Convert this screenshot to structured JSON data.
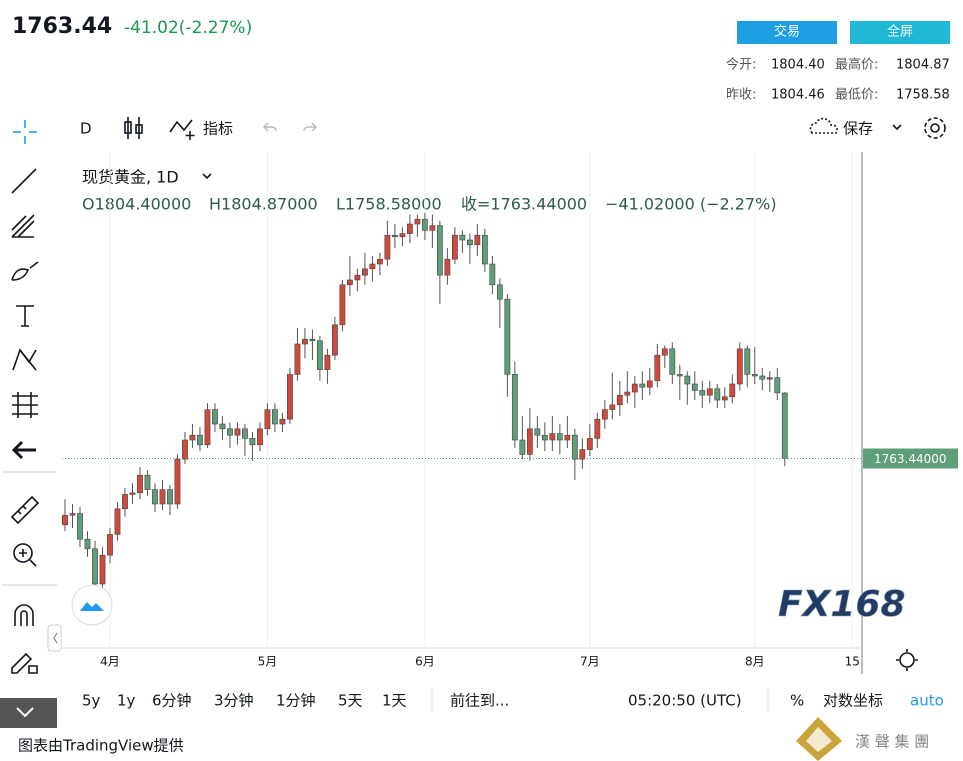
{
  "header": {
    "last": "1763.44",
    "change": "-41.02(-2.27%)",
    "buttons": [
      "交易",
      "全屏"
    ],
    "open_label": "今开:",
    "open": "1804.40",
    "high_label": "最高价:",
    "high": "1804.87",
    "prev_label": "昨收:",
    "prev": "1804.46",
    "low_label": "最低价:",
    "low": "1758.58"
  },
  "toolbar": {
    "interval": "D",
    "indicators": "指标",
    "save": "保存"
  },
  "chart_data": {
    "type": "candlestick",
    "symbol": "现货黄金, 1D",
    "legend": {
      "open": "O1804.40000",
      "high": "H1804.87000",
      "low": "L1758.58000",
      "close": "收=1763.44000",
      "change": "−41.02000 (−2.27%)"
    },
    "price_label": "1763.44000",
    "watermark": "FX168",
    "up_color": "#cf4a3c",
    "down_color": "#5e9e7a",
    "xlim": [
      -0.4,
      106.3
    ],
    "ylim": [
      1645,
      1955
    ],
    "xticks": [
      {
        "value": 6,
        "label": "4月"
      },
      {
        "value": 27,
        "label": "5月"
      },
      {
        "value": 48,
        "label": "6月"
      },
      {
        "value": 70,
        "label": "7月"
      },
      {
        "value": 92,
        "label": "8月"
      },
      {
        "value": 105,
        "label": "15"
      }
    ],
    "candles": [
      [
        1722,
        1738,
        1718,
        1728
      ],
      [
        1728,
        1735,
        1720,
        1729
      ],
      [
        1729,
        1733,
        1708,
        1713
      ],
      [
        1713,
        1718,
        1702,
        1707
      ],
      [
        1707,
        1712,
        1677,
        1685
      ],
      [
        1685,
        1708,
        1680,
        1703
      ],
      [
        1703,
        1720,
        1698,
        1716
      ],
      [
        1716,
        1736,
        1712,
        1732
      ],
      [
        1732,
        1745,
        1727,
        1741
      ],
      [
        1741,
        1748,
        1735,
        1742
      ],
      [
        1742,
        1758,
        1738,
        1753
      ],
      [
        1753,
        1756,
        1740,
        1744
      ],
      [
        1744,
        1748,
        1730,
        1735
      ],
      [
        1735,
        1750,
        1731,
        1744
      ],
      [
        1744,
        1747,
        1728,
        1735
      ],
      [
        1735,
        1766,
        1732,
        1763
      ],
      [
        1763,
        1780,
        1760,
        1775
      ],
      [
        1775,
        1785,
        1770,
        1778
      ],
      [
        1778,
        1783,
        1768,
        1772
      ],
      [
        1772,
        1798,
        1770,
        1794
      ],
      [
        1794,
        1798,
        1780,
        1785
      ],
      [
        1785,
        1790,
        1775,
        1782
      ],
      [
        1782,
        1786,
        1770,
        1778
      ],
      [
        1778,
        1786,
        1772,
        1782
      ],
      [
        1782,
        1785,
        1765,
        1776
      ],
      [
        1776,
        1780,
        1762,
        1772
      ],
      [
        1772,
        1786,
        1768,
        1782
      ],
      [
        1782,
        1798,
        1778,
        1794
      ],
      [
        1794,
        1798,
        1780,
        1785
      ],
      [
        1785,
        1792,
        1780,
        1788
      ],
      [
        1788,
        1820,
        1785,
        1816
      ],
      [
        1816,
        1845,
        1812,
        1835
      ],
      [
        1835,
        1845,
        1826,
        1838
      ],
      [
        1838,
        1844,
        1825,
        1837
      ],
      [
        1837,
        1840,
        1812,
        1819
      ],
      [
        1819,
        1832,
        1810,
        1828
      ],
      [
        1828,
        1852,
        1825,
        1847
      ],
      [
        1847,
        1875,
        1843,
        1872
      ],
      [
        1872,
        1890,
        1865,
        1875
      ],
      [
        1875,
        1882,
        1868,
        1878
      ],
      [
        1878,
        1892,
        1872,
        1882
      ],
      [
        1882,
        1890,
        1874,
        1885
      ],
      [
        1885,
        1892,
        1878,
        1888
      ],
      [
        1888,
        1912,
        1884,
        1903
      ],
      [
        1903,
        1910,
        1895,
        1902
      ],
      [
        1902,
        1908,
        1896,
        1904
      ],
      [
        1904,
        1916,
        1898,
        1910
      ],
      [
        1910,
        1916,
        1902,
        1913
      ],
      [
        1913,
        1917,
        1900,
        1906
      ],
      [
        1906,
        1916,
        1895,
        1909
      ],
      [
        1909,
        1912,
        1860,
        1878
      ],
      [
        1878,
        1895,
        1872,
        1888
      ],
      [
        1888,
        1908,
        1885,
        1903
      ],
      [
        1903,
        1906,
        1892,
        1900
      ],
      [
        1900,
        1904,
        1885,
        1897
      ],
      [
        1897,
        1910,
        1890,
        1903
      ],
      [
        1903,
        1907,
        1880,
        1885
      ],
      [
        1885,
        1890,
        1866,
        1872
      ],
      [
        1872,
        1876,
        1845,
        1863
      ],
      [
        1863,
        1866,
        1802,
        1816
      ],
      [
        1816,
        1824,
        1770,
        1775
      ],
      [
        1775,
        1790,
        1763,
        1766
      ],
      [
        1766,
        1795,
        1762,
        1782
      ],
      [
        1782,
        1790,
        1770,
        1778
      ],
      [
        1778,
        1786,
        1768,
        1775
      ],
      [
        1775,
        1790,
        1768,
        1779
      ],
      [
        1779,
        1785,
        1766,
        1775
      ],
      [
        1775,
        1790,
        1770,
        1778
      ],
      [
        1778,
        1782,
        1750,
        1763
      ],
      [
        1763,
        1776,
        1757,
        1769
      ],
      [
        1769,
        1785,
        1765,
        1776
      ],
      [
        1776,
        1792,
        1770,
        1788
      ],
      [
        1788,
        1800,
        1782,
        1794
      ],
      [
        1794,
        1817,
        1788,
        1797
      ],
      [
        1797,
        1812,
        1790,
        1803
      ],
      [
        1803,
        1818,
        1798,
        1805
      ],
      [
        1805,
        1815,
        1795,
        1810
      ],
      [
        1810,
        1818,
        1800,
        1808
      ],
      [
        1808,
        1820,
        1803,
        1812
      ],
      [
        1812,
        1835,
        1808,
        1828
      ],
      [
        1828,
        1834,
        1820,
        1832
      ],
      [
        1832,
        1836,
        1810,
        1816
      ],
      [
        1816,
        1822,
        1800,
        1815
      ],
      [
        1815,
        1818,
        1797,
        1810
      ],
      [
        1810,
        1818,
        1800,
        1806
      ],
      [
        1806,
        1812,
        1795,
        1803
      ],
      [
        1803,
        1812,
        1798,
        1807
      ],
      [
        1807,
        1810,
        1795,
        1800
      ],
      [
        1800,
        1808,
        1795,
        1802
      ],
      [
        1802,
        1816,
        1798,
        1810
      ],
      [
        1810,
        1836,
        1806,
        1832
      ],
      [
        1832,
        1834,
        1808,
        1816
      ],
      [
        1816,
        1833,
        1810,
        1815
      ],
      [
        1815,
        1820,
        1806,
        1813
      ],
      [
        1813,
        1818,
        1805,
        1814
      ],
      [
        1814,
        1820,
        1800,
        1804.46
      ],
      [
        1804.4,
        1804.87,
        1758.58,
        1763.44
      ]
    ]
  },
  "bottom_bar": {
    "ranges": [
      "5y",
      "1y",
      "6分钟",
      "3分钟",
      "1分钟",
      "5天",
      "1天"
    ],
    "goto": "前往到...",
    "time": "05:20:50 (UTC)",
    "percent": "%",
    "log": "对数坐标",
    "auto": "auto"
  },
  "footer": {
    "credit": "图表由TradingView提供",
    "brand": "漢 聲 集 團"
  }
}
